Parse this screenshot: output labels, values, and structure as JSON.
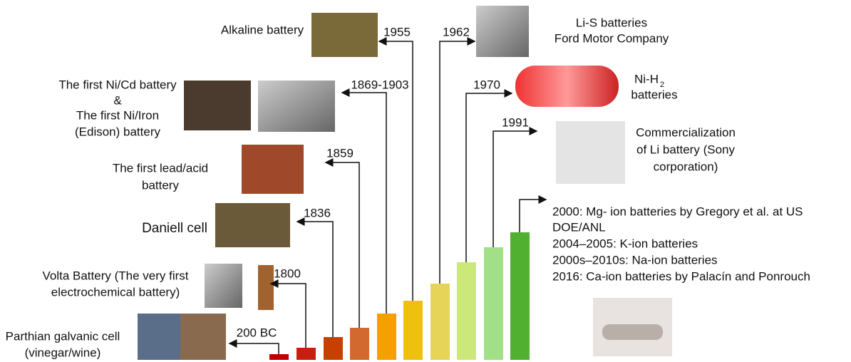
{
  "events": [
    {
      "year": "200 BC",
      "label": [
        "Parthian galvanic cell",
        "(vinegar/wine)"
      ]
    },
    {
      "year": "1800",
      "label": [
        "Volta Battery (The very first",
        "electrochemical battery)"
      ]
    },
    {
      "year": "1836",
      "label": [
        "Daniell cell"
      ]
    },
    {
      "year": "1859",
      "label": [
        "The first lead/acid",
        "battery"
      ]
    },
    {
      "year": "1869-1903",
      "label": [
        "The first Ni/Cd battery",
        "&",
        "The first Ni/Iron",
        "(Edison) battery"
      ]
    },
    {
      "year": "1955",
      "label": [
        "Alkaline battery"
      ]
    },
    {
      "year": "1962",
      "label": [
        "Li-S batteries",
        "Ford Motor Company"
      ]
    },
    {
      "year": "1970",
      "label": [
        "Ni-H",
        "2",
        "batteries"
      ]
    },
    {
      "year": "1991",
      "label": [
        "Commercialization",
        "of Li battery (Sony",
        "corporation)"
      ]
    },
    {
      "label": [
        "2000: Mg- ion batteries by Gregory et al. at US",
        "DOE/ANL",
        "2004–2005: K-ion batteries",
        "2000s–2010s: Na-ion batteries",
        "2016: Ca-ion batteries by Palacín and Ponrouch"
      ]
    }
  ]
}
